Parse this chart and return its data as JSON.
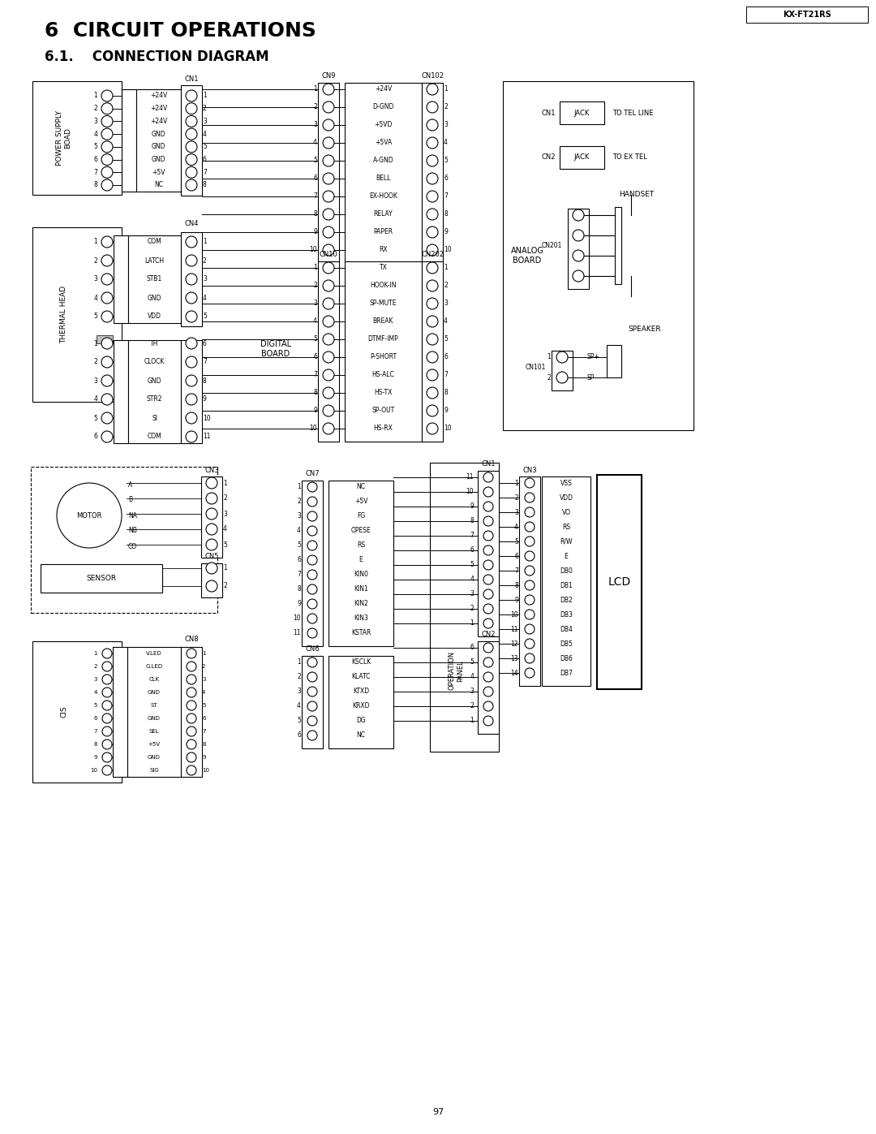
{
  "title": "6  CIRCUIT OPERATIONS",
  "subtitle": "6.1.    CONNECTION DIAGRAM",
  "page_num": "97",
  "model": "KX-FT21RS",
  "ps_pins": [
    "+24V",
    "+24V",
    "+24V",
    "GND",
    "GND",
    "GND",
    "+5V",
    "NC"
  ],
  "th_g1_pins": [
    "COM",
    "LATCH",
    "STB1",
    "GND",
    "VDD"
  ],
  "th_g2_pins": [
    "TH",
    "CLOCK",
    "GND",
    "STR2",
    "SI",
    "COM"
  ],
  "cn9_sigs": [
    "+24V",
    "D-GND",
    "+5VD",
    "+5VA",
    "A-GND",
    "BELL",
    "EX-HOOK",
    "RELAY",
    "PAPER",
    "RX"
  ],
  "cn10_sigs": [
    "TX",
    "HOOK-IN",
    "SP-MUTE",
    "BREAK",
    "DTMF-IMP",
    "P-SHORT",
    "HS-ALC",
    "HS-TX",
    "SP-OUT",
    "HS-RX"
  ],
  "motor_sigs": [
    "A",
    "B",
    "NA",
    "NB",
    "CO"
  ],
  "cis_sigs": [
    "V.LED",
    "G.LED",
    "CLK",
    "GND",
    "ST",
    "GND",
    "SEL",
    "+5V",
    "GND",
    "SIG"
  ],
  "cn7_sigs": [
    "NC",
    "+5V",
    "FG",
    "OPESE",
    "RS",
    "E",
    "KIN0",
    "KIN1",
    "KIN2",
    "KIN3",
    "KSTAR"
  ],
  "cn6_sigs": [
    "KSCLK",
    "KLATC",
    "KTXD",
    "KRXD",
    "DG",
    "NC"
  ],
  "cn3lcd_sigs": [
    "VSS",
    "VDD",
    "VO",
    "RS",
    "R/W",
    "E",
    "DB0",
    "DB1",
    "DB2",
    "DB3",
    "DB4",
    "DB5",
    "DB6",
    "DB7"
  ]
}
